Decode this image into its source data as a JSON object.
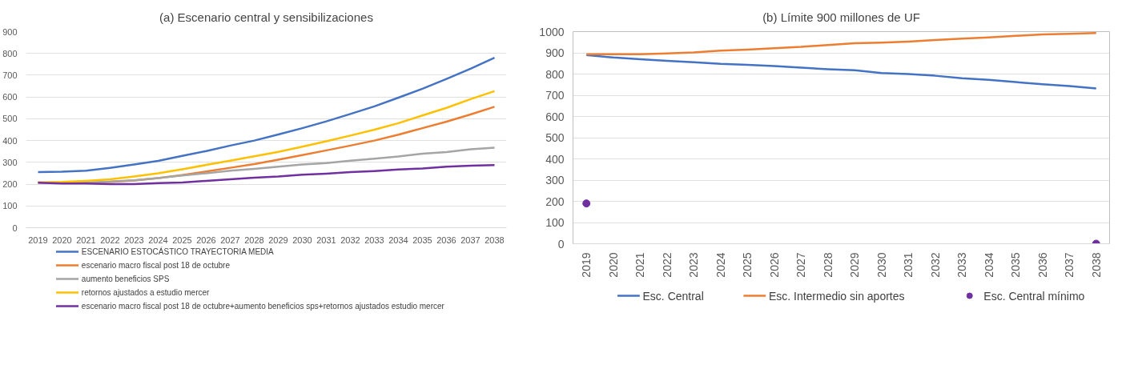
{
  "chart_data": [
    {
      "type": "line",
      "title": "(a) Escenario central y sensibilizaciones",
      "categories": [
        "2019",
        "2020",
        "2021",
        "2022",
        "2023",
        "2024",
        "2025",
        "2026",
        "2027",
        "2028",
        "2029",
        "2030",
        "2031",
        "2032",
        "2033",
        "2034",
        "2035",
        "2036",
        "2037",
        "2038"
      ],
      "ylim": [
        0,
        900
      ],
      "yticks": [
        0,
        100,
        200,
        300,
        400,
        500,
        600,
        700,
        800,
        900
      ],
      "grid": "y",
      "legend": "bottom",
      "series": [
        {
          "name": "ESCENARIO ESTOCÁSTICO TRAYECTORIA MEDIA",
          "color": "#4472c4",
          "values": [
            255,
            257,
            262,
            275,
            290,
            307,
            330,
            352,
            377,
            400,
            428,
            457,
            488,
            522,
            557,
            597,
            638,
            683,
            730,
            780
          ]
        },
        {
          "name": "escenario macro fiscal post 18 de octubre",
          "color": "#ed7d31",
          "values": [
            208,
            205,
            207,
            210,
            217,
            228,
            242,
            258,
            275,
            292,
            312,
            333,
            355,
            377,
            400,
            427,
            457,
            487,
            520,
            555
          ]
        },
        {
          "name": "aumento beneficios SPS",
          "color": "#a5a5a5",
          "values": [
            208,
            205,
            207,
            212,
            218,
            228,
            240,
            250,
            262,
            270,
            280,
            290,
            297,
            308,
            317,
            327,
            340,
            347,
            360,
            367
          ]
        },
        {
          "name": "retornos ajustados a estudio mercer",
          "color": "#ffc000",
          "values": [
            208,
            210,
            215,
            222,
            235,
            250,
            268,
            288,
            308,
            328,
            348,
            372,
            397,
            423,
            450,
            480,
            515,
            550,
            590,
            627
          ]
        },
        {
          "name": "escenario macro fiscal post 18 de octubre+aumento beneficios sps+retornos ajustados estudio mercer",
          "color": "#7030a0",
          "values": [
            207,
            203,
            203,
            200,
            200,
            205,
            208,
            215,
            222,
            230,
            235,
            243,
            248,
            255,
            260,
            267,
            272,
            280,
            285,
            287
          ]
        }
      ]
    },
    {
      "type": "line",
      "title": "(b) Límite 900 millones de UF",
      "categories": [
        "2019",
        "2020",
        "2021",
        "2022",
        "2023",
        "2024",
        "2025",
        "2026",
        "2027",
        "2028",
        "2029",
        "2030",
        "2031",
        "2032",
        "2033",
        "2034",
        "2035",
        "2036",
        "2037",
        "2038"
      ],
      "ylim": [
        0,
        1000
      ],
      "yticks": [
        0,
        100,
        200,
        300,
        400,
        500,
        600,
        700,
        800,
        900,
        1000
      ],
      "grid": "y",
      "legend": "bottom",
      "series": [
        {
          "name": "Esc. Central",
          "color": "#4472c4",
          "values": [
            890,
            878,
            870,
            862,
            856,
            848,
            843,
            838,
            830,
            823,
            818,
            805,
            800,
            792,
            780,
            773,
            762,
            752,
            743,
            732
          ]
        },
        {
          "name": "Esc. Intermedio sin aportes",
          "color": "#ed7d31",
          "values": [
            893,
            893,
            893,
            897,
            902,
            910,
            915,
            922,
            928,
            937,
            945,
            948,
            953,
            960,
            967,
            973,
            980,
            987,
            990,
            993
          ]
        },
        {
          "name": "Esc. Central mínimo",
          "type": "scatter",
          "marker": "circle",
          "color": "#7030a0",
          "values": [
            190,
            null,
            null,
            null,
            null,
            null,
            null,
            null,
            null,
            null,
            null,
            null,
            null,
            null,
            null,
            null,
            null,
            null,
            null,
            0
          ]
        }
      ]
    }
  ]
}
